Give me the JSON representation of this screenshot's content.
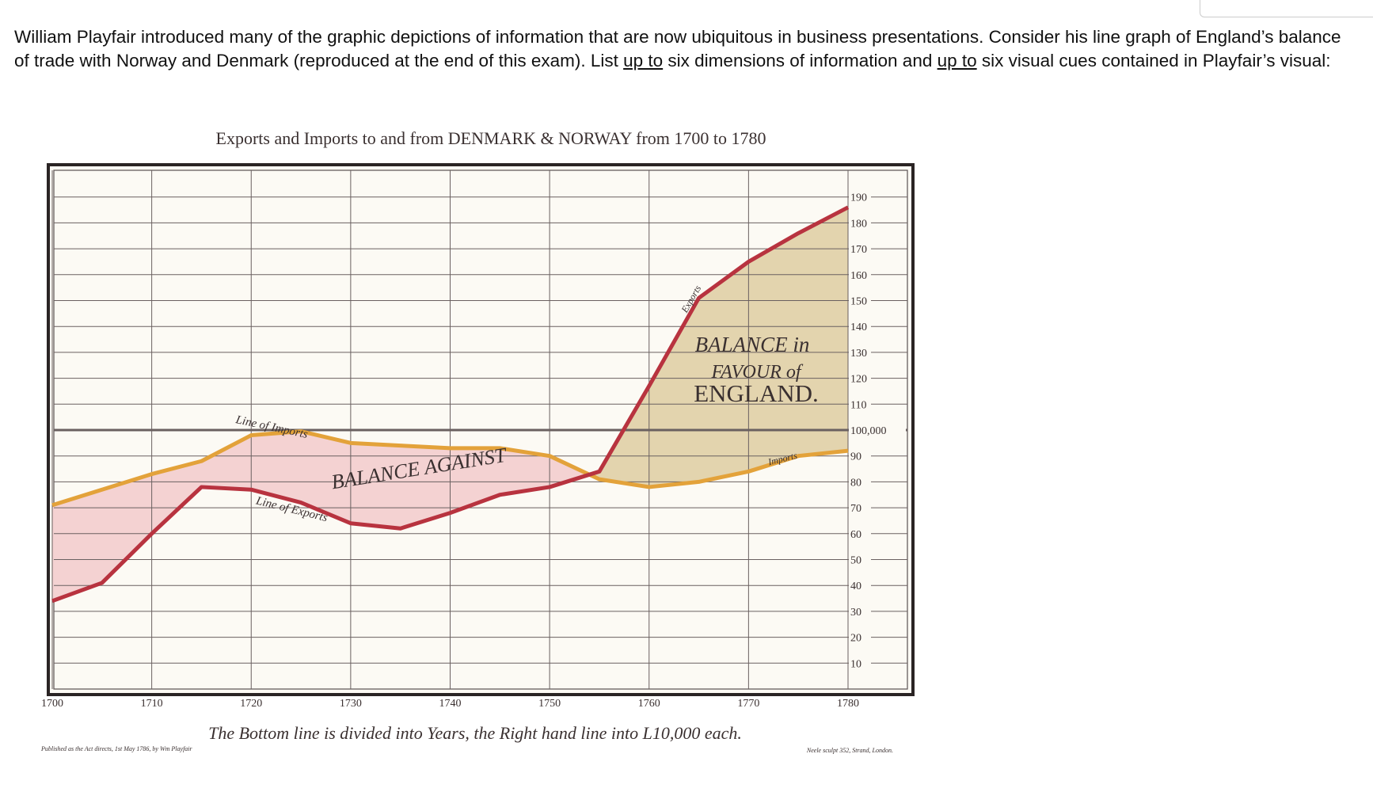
{
  "question": [
    "William Playfair introduced many of the graphic depictions of information that are now ubiquitous in business presentations. Consider his line graph of England’s balance of trade with Norway and Denmark (reproduced at the end of this exam). List ",
    "up to",
    " six dimensions of information and ",
    "up to",
    " six visual cues contained in Playfair’s visual:"
  ],
  "chart_data": {
    "type": "line",
    "title": "Exports and Imports to and from DENMARK & NORWAY from 1700 to 1780",
    "x": [
      1700,
      1705,
      1710,
      1715,
      1720,
      1725,
      1730,
      1735,
      1740,
      1745,
      1750,
      1755,
      1760,
      1765,
      1770,
      1775,
      1780
    ],
    "series": [
      {
        "name": "Line of Imports",
        "color": "#e3a23a",
        "values": [
          71,
          77,
          83,
          88,
          98,
          99.5,
          95,
          94,
          93,
          93,
          90,
          81,
          78,
          80,
          84,
          90,
          92
        ]
      },
      {
        "name": "Line of Exports",
        "color": "#b8333f",
        "values": [
          34,
          41,
          60,
          78,
          77,
          72,
          64,
          62,
          68,
          75,
          78,
          84,
          117,
          151,
          165,
          176,
          186
        ]
      }
    ],
    "xlim": [
      1700,
      1780
    ],
    "xticks": [
      1700,
      1710,
      1720,
      1730,
      1740,
      1750,
      1760,
      1770,
      1780
    ],
    "ylim": [
      0,
      200
    ],
    "yticks": [
      10,
      20,
      30,
      40,
      50,
      60,
      70,
      80,
      90,
      {
        "value": 100,
        "label": "100,000"
      },
      110,
      120,
      130,
      140,
      150,
      160,
      170,
      180,
      190
    ],
    "grid": true,
    "annotations": [
      "BALANCE AGAINST",
      "BALANCE in",
      "FAVOUR of",
      "ENGLAND.",
      "Exports",
      "Imports"
    ],
    "fills": {
      "against": "#f4d2d2",
      "favour": "#e3d4ae"
    },
    "footer": "The Bottom line is divided into Years, the Right hand line into L10,000 each.",
    "publisher": "Published as the Act directs, 1st May 1786, by Wm Playfair",
    "engraver": "Neele sculpt 352, Strand, London."
  }
}
